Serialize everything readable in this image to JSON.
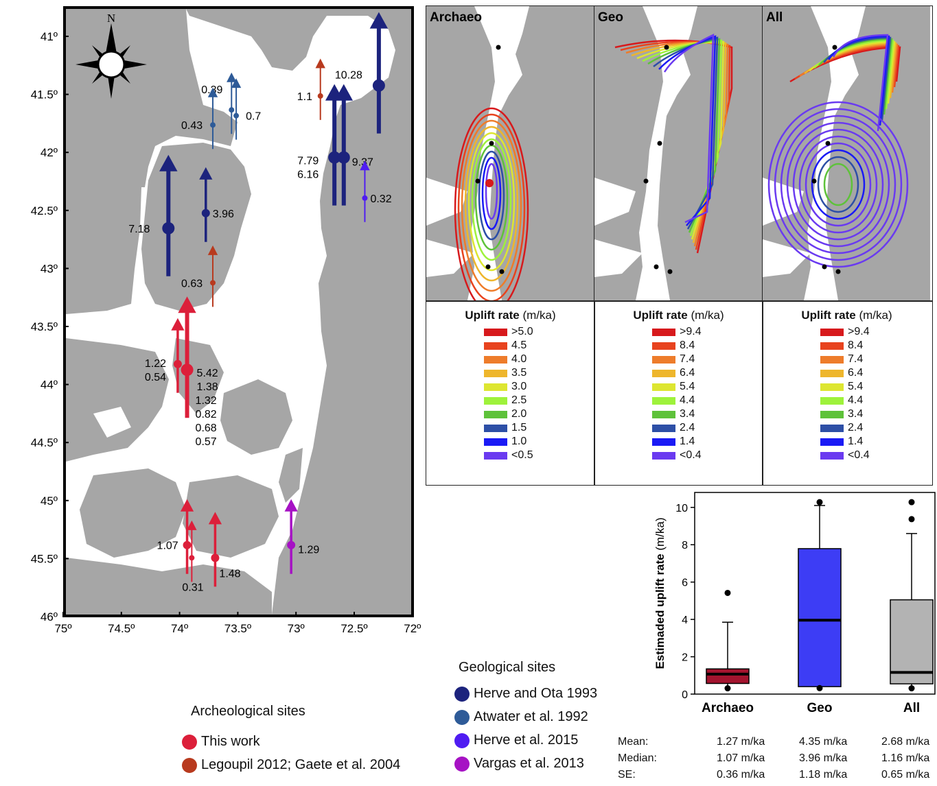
{
  "map": {
    "compass_label": "N",
    "lat_ticks": [
      "41º",
      "41.5º",
      "42º",
      "42.5º",
      "43º",
      "43.5º",
      "44º",
      "44.5º",
      "45º",
      "45.5º",
      "46º"
    ],
    "lon_ticks": [
      "75º",
      "74.5º",
      "74º",
      "73.5º",
      "73º",
      "72.5º",
      "72º"
    ],
    "sites": [
      {
        "label": "10.28",
        "lon": -72.3,
        "lat": 41.4,
        "group": "herve_ota",
        "size": "lg"
      },
      {
        "label": "7.79",
        "lon": -72.68,
        "lat": 42.02,
        "group": "herve_ota",
        "size": "lg"
      },
      {
        "label": "6.16",
        "lon": -72.68,
        "lat": 42.02,
        "group": "herve_ota",
        "size": "none"
      },
      {
        "label": "9.37",
        "lon": -72.6,
        "lat": 42.02,
        "group": "herve_ota",
        "size": "lg"
      },
      {
        "label": "7.18",
        "lon": -74.1,
        "lat": 42.63,
        "group": "herve_ota",
        "size": "lg"
      },
      {
        "label": "3.96",
        "lon": -73.78,
        "lat": 42.5,
        "group": "herve_ota",
        "size": "md"
      },
      {
        "label": "0.39",
        "lon": -73.56,
        "lat": 41.61,
        "group": "atwater",
        "size": "sm"
      },
      {
        "label": "0.7",
        "lon": -73.52,
        "lat": 41.66,
        "group": "atwater",
        "size": "sm"
      },
      {
        "label": "0.43",
        "lon": -73.72,
        "lat": 41.74,
        "group": "atwater",
        "size": "sm"
      },
      {
        "label": "0.32",
        "lon": -72.42,
        "lat": 42.37,
        "group": "herve2015",
        "size": "sm"
      },
      {
        "label": "1.1",
        "lon": -72.8,
        "lat": 41.49,
        "group": "legoupil",
        "size": "sm"
      },
      {
        "label": "0.63",
        "lon": -73.72,
        "lat": 43.1,
        "group": "legoupil",
        "size": "sm"
      },
      {
        "label": "1.22",
        "lon": -74.02,
        "lat": 43.8,
        "group": "this_work",
        "size": "md"
      },
      {
        "label": "0.54",
        "lon": -74.02,
        "lat": 43.8,
        "group": "this_work",
        "size": "none"
      },
      {
        "label": "5.42",
        "lon": -73.94,
        "lat": 43.85,
        "group": "this_work",
        "size": "lg"
      },
      {
        "label": "1.38",
        "lon": -73.94,
        "lat": 43.85,
        "group": "this_work",
        "size": "none"
      },
      {
        "label": "1.32",
        "lon": -73.94,
        "lat": 43.85,
        "group": "this_work",
        "size": "none"
      },
      {
        "label": "0.82",
        "lon": -73.94,
        "lat": 43.85,
        "group": "this_work",
        "size": "none"
      },
      {
        "label": "0.68",
        "lon": -73.94,
        "lat": 43.85,
        "group": "this_work",
        "size": "none"
      },
      {
        "label": "0.57",
        "lon": -73.94,
        "lat": 43.85,
        "group": "this_work",
        "size": "none"
      },
      {
        "label": "1.07",
        "lon": -73.94,
        "lat": 45.36,
        "group": "this_work",
        "size": "md"
      },
      {
        "label": "0.31",
        "lon": -73.9,
        "lat": 45.47,
        "group": "this_work",
        "size": "sm"
      },
      {
        "label": "1.48",
        "lon": -73.7,
        "lat": 45.47,
        "group": "this_work",
        "size": "md"
      },
      {
        "label": "1.29",
        "lon": -73.05,
        "lat": 45.36,
        "group": "vargas",
        "size": "md"
      }
    ]
  },
  "panels": [
    {
      "title": "Archaeo",
      "legend_title_bold": "Uplift rate",
      "legend_unit": "(m/ka)",
      "levels": [
        ">5.0",
        "4.5",
        "4.0",
        "3.5",
        "3.0",
        "2.5",
        "2.0",
        "1.5",
        "1.0",
        "<0.5"
      ]
    },
    {
      "title": "Geo",
      "legend_title_bold": "Uplift rate",
      "legend_unit": "(m/ka)",
      "levels": [
        ">9.4",
        "8.4",
        "7.4",
        "6.4",
        "5.4",
        "4.4",
        "3.4",
        "2.4",
        "1.4",
        "<0.4"
      ]
    },
    {
      "title": "All",
      "legend_title_bold": "Uplift rate",
      "legend_unit": "(m/ka)",
      "levels": [
        ">9.4",
        "8.4",
        "7.4",
        "6.4",
        "5.4",
        "4.4",
        "3.4",
        "2.4",
        "1.4",
        "<0.4"
      ]
    }
  ],
  "level_colors": [
    "#d7191c",
    "#e8431e",
    "#ee7c2a",
    "#eeb62c",
    "#dde631",
    "#9ef23b",
    "#5ec23a",
    "#2d4fa6",
    "#1a1af5",
    "#6a3af0"
  ],
  "chart_data": {
    "type": "box",
    "ylabel": "Estimaded uplift rate (m/ka)",
    "ylim": [
      0,
      10.8
    ],
    "yticks": [
      "0",
      "2",
      "4",
      "6",
      "8",
      "10"
    ],
    "categories": [
      "Archaeo",
      "Geo",
      "All"
    ],
    "boxes": [
      {
        "name": "Archaeo",
        "whisker_low": 0.31,
        "q1": 0.57,
        "median": 1.07,
        "q3": 1.35,
        "whisker_high": 3.85,
        "outliers": [
          5.42,
          0.31
        ],
        "color": "#a3142e"
      },
      {
        "name": "Geo",
        "whisker_low": 0.32,
        "q1": 0.4,
        "median": 3.96,
        "q3": 7.79,
        "whisker_high": 10.1,
        "outliers": [
          10.28,
          0.32
        ],
        "color": "#3d3df5"
      },
      {
        "name": "All",
        "whisker_low": 0.31,
        "q1": 0.55,
        "median": 1.16,
        "q3": 5.05,
        "whisker_high": 8.6,
        "outliers": [
          10.28,
          9.37,
          0.31
        ],
        "color": "#b3b3b3"
      }
    ]
  },
  "stats": {
    "rows": [
      {
        "label": "Mean:",
        "values": [
          "1.27",
          "4.35",
          "2.68"
        ]
      },
      {
        "label": "Median:",
        "values": [
          "1.07",
          "3.96",
          "1.16"
        ]
      },
      {
        "label": "SE:",
        "values": [
          "0.36",
          "1.18",
          "0.65"
        ]
      }
    ],
    "unit": "m/ka"
  },
  "keys": {
    "arch_title": "Archeological sites",
    "arch_items": [
      {
        "label": "This work",
        "color": "#dc1f3a"
      },
      {
        "label": "Legoupil 2012;  Gaete et al. 2004",
        "color": "#b83a1e"
      }
    ],
    "geo_title": "Geological sites",
    "geo_items": [
      {
        "label": "Herve and Ota 1993",
        "color": "#1c237d"
      },
      {
        "label": "Atwater et al. 1992",
        "color": "#2e5b98"
      },
      {
        "label": "Herve et al. 2015",
        "color": "#4f1cf2"
      },
      {
        "label": "Vargas et al. 2013",
        "color": "#a612c4"
      }
    ]
  },
  "group_colors": {
    "herve_ota": "#1c237d",
    "atwater": "#2e5b98",
    "herve2015": "#4f1cf2",
    "vargas": "#a612c4",
    "this_work": "#dc1f3a",
    "legoupil": "#b83a1e"
  }
}
